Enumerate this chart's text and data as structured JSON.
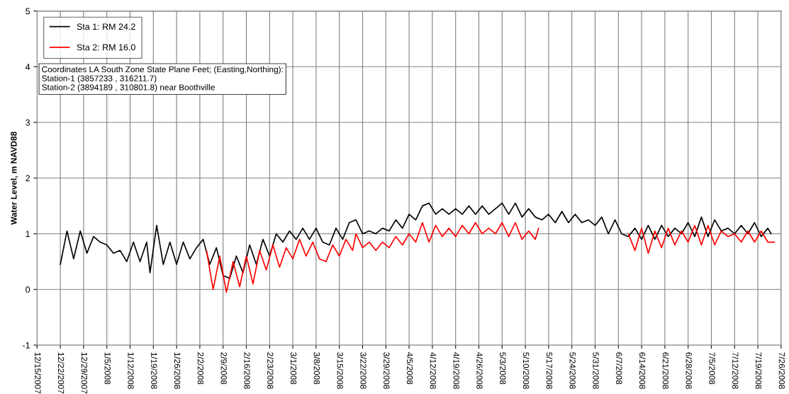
{
  "chart_data": {
    "type": "line",
    "ylabel": "Water Level, m NAVD88",
    "xlim": [
      "2007-12-15",
      "2008-07-26"
    ],
    "ylim": [
      -1,
      5
    ],
    "yticks": [
      -1,
      0,
      1,
      2,
      3,
      4,
      5
    ],
    "xticks": [
      {
        "value": "2007-12-15",
        "label": "12/15/2007"
      },
      {
        "value": "2007-12-22",
        "label": "12/22/2007"
      },
      {
        "value": "2007-12-29",
        "label": "12/29/2007"
      },
      {
        "value": "2008-01-05",
        "label": "1/5/2008"
      },
      {
        "value": "2008-01-12",
        "label": "1/12/2008"
      },
      {
        "value": "2008-01-19",
        "label": "1/19/2008"
      },
      {
        "value": "2008-01-26",
        "label": "1/26/2008"
      },
      {
        "value": "2008-02-02",
        "label": "2/2/2008"
      },
      {
        "value": "2008-02-09",
        "label": "2/9/2008"
      },
      {
        "value": "2008-02-16",
        "label": "2/16/2008"
      },
      {
        "value": "2008-02-23",
        "label": "2/23/2008"
      },
      {
        "value": "2008-03-01",
        "label": "3/1/2008"
      },
      {
        "value": "2008-03-08",
        "label": "3/8/2008"
      },
      {
        "value": "2008-03-15",
        "label": "3/15/2008"
      },
      {
        "value": "2008-03-22",
        "label": "3/22/2008"
      },
      {
        "value": "2008-03-29",
        "label": "3/29/2008"
      },
      {
        "value": "2008-04-05",
        "label": "4/5/2008"
      },
      {
        "value": "2008-04-12",
        "label": "4/12/2008"
      },
      {
        "value": "2008-04-19",
        "label": "4/19/2008"
      },
      {
        "value": "2008-04-26",
        "label": "4/26/2008"
      },
      {
        "value": "2008-05-03",
        "label": "5/3/2008"
      },
      {
        "value": "2008-05-10",
        "label": "5/10/2008"
      },
      {
        "value": "2008-05-17",
        "label": "5/17/2008"
      },
      {
        "value": "2008-05-24",
        "label": "5/24/2008"
      },
      {
        "value": "2008-05-31",
        "label": "5/31/2008"
      },
      {
        "value": "2008-06-07",
        "label": "6/7/2008"
      },
      {
        "value": "2008-06-14",
        "label": "6/14/2008"
      },
      {
        "value": "2008-06-21",
        "label": "6/21/2008"
      },
      {
        "value": "2008-06-28",
        "label": "6/28/2008"
      },
      {
        "value": "2008-07-05",
        "label": "7/5/2008"
      },
      {
        "value": "2008-07-12",
        "label": "7/12/2008"
      },
      {
        "value": "2008-07-19",
        "label": "7/19/2008"
      },
      {
        "value": "2008-07-26",
        "label": "7/26/2008"
      }
    ],
    "grid": true,
    "legend": "top left",
    "line_style": "solid",
    "annotations": [
      "Coordinates LA South Zone State Plane Feet; (Easting,Northing):\nStation-1 (3857233 , 316211.7)\nStation-2 (3894189 , 310801.8) near Boothville"
    ],
    "series": [
      {
        "name": "Sta 1: RM 24.2",
        "color": "#000000",
        "x": [
          "2007-12-22",
          "2007-12-24",
          "2007-12-26",
          "2007-12-28",
          "2007-12-30",
          "2008-01-01",
          "2008-01-03",
          "2008-01-05",
          "2008-01-07",
          "2008-01-09",
          "2008-01-11",
          "2008-01-13",
          "2008-01-15",
          "2008-01-17",
          "2008-01-18",
          "2008-01-20",
          "2008-01-22",
          "2008-01-24",
          "2008-01-26",
          "2008-01-28",
          "2008-01-30",
          "2008-02-01",
          "2008-02-03",
          "2008-02-05",
          "2008-02-07",
          "2008-02-09",
          "2008-02-11",
          "2008-02-13",
          "2008-02-15",
          "2008-02-17",
          "2008-02-19",
          "2008-02-21",
          "2008-02-23",
          "2008-02-25",
          "2008-02-27",
          "2008-02-29",
          "2008-03-02",
          "2008-03-04",
          "2008-03-06",
          "2008-03-08",
          "2008-03-10",
          "2008-03-12",
          "2008-03-14",
          "2008-03-16",
          "2008-03-18",
          "2008-03-20",
          "2008-03-22",
          "2008-03-24",
          "2008-03-26",
          "2008-03-28",
          "2008-03-30",
          "2008-04-01",
          "2008-04-03",
          "2008-04-05",
          "2008-04-07",
          "2008-04-09",
          "2008-04-11",
          "2008-04-13",
          "2008-04-15",
          "2008-04-17",
          "2008-04-19",
          "2008-04-21",
          "2008-04-23",
          "2008-04-25",
          "2008-04-27",
          "2008-04-29",
          "2008-05-01",
          "2008-05-03",
          "2008-05-05",
          "2008-05-07",
          "2008-05-09",
          "2008-05-11",
          "2008-05-13",
          "2008-05-15",
          "2008-05-17",
          "2008-05-19",
          "2008-05-21",
          "2008-05-23",
          "2008-05-25",
          "2008-05-27",
          "2008-05-29",
          "2008-05-31",
          "2008-06-02",
          "2008-06-04",
          "2008-06-06",
          "2008-06-08",
          "2008-06-10",
          "2008-06-12",
          "2008-06-14",
          "2008-06-16",
          "2008-06-18",
          "2008-06-20",
          "2008-06-22",
          "2008-06-24",
          "2008-06-26",
          "2008-06-28",
          "2008-06-30",
          "2008-07-02",
          "2008-07-04",
          "2008-07-06",
          "2008-07-08",
          "2008-07-10",
          "2008-07-12",
          "2008-07-14",
          "2008-07-16",
          "2008-07-18",
          "2008-07-20",
          "2008-07-22",
          "2008-07-23"
        ],
        "values": [
          0.45,
          1.05,
          0.55,
          1.05,
          0.65,
          0.95,
          0.85,
          0.8,
          0.65,
          0.7,
          0.5,
          0.85,
          0.5,
          0.85,
          0.3,
          1.15,
          0.45,
          0.85,
          0.45,
          0.85,
          0.55,
          0.75,
          0.9,
          0.45,
          0.75,
          0.25,
          0.2,
          0.6,
          0.3,
          0.8,
          0.45,
          0.9,
          0.6,
          1.0,
          0.85,
          1.05,
          0.9,
          1.1,
          0.9,
          1.1,
          0.85,
          0.8,
          1.1,
          0.9,
          1.2,
          1.25,
          1.0,
          1.05,
          1.0,
          1.1,
          1.05,
          1.25,
          1.1,
          1.35,
          1.25,
          1.5,
          1.55,
          1.35,
          1.45,
          1.35,
          1.45,
          1.35,
          1.5,
          1.35,
          1.5,
          1.35,
          1.45,
          1.55,
          1.35,
          1.55,
          1.3,
          1.45,
          1.3,
          1.25,
          1.35,
          1.2,
          1.4,
          1.2,
          1.35,
          1.2,
          1.25,
          1.15,
          1.3,
          1.0,
          1.25,
          1.0,
          0.95,
          1.1,
          0.9,
          1.15,
          0.9,
          1.15,
          0.95,
          1.1,
          1.0,
          1.2,
          0.95,
          1.3,
          0.95,
          1.25,
          1.05,
          1.1,
          1.0,
          1.15,
          1.0,
          1.2,
          0.95,
          1.1,
          1.0
        ]
      },
      {
        "name": "Sta 2: RM 16.0",
        "color": "#ff0000",
        "x": [
          "2008-02-04",
          "2008-02-06",
          "2008-02-08",
          "2008-02-10",
          "2008-02-12",
          "2008-02-14",
          "2008-02-16",
          "2008-02-18",
          "2008-02-20",
          "2008-02-22",
          "2008-02-24",
          "2008-02-26",
          "2008-02-28",
          "2008-03-01",
          "2008-03-03",
          "2008-03-05",
          "2008-03-07",
          "2008-03-09",
          "2008-03-11",
          "2008-03-13",
          "2008-03-15",
          "2008-03-17",
          "2008-03-19",
          "2008-03-20",
          "2008-03-22",
          "2008-03-24",
          "2008-03-26",
          "2008-03-28",
          "2008-03-30",
          "2008-04-01",
          "2008-04-03",
          "2008-04-05",
          "2008-04-07",
          "2008-04-09",
          "2008-04-11",
          "2008-04-13",
          "2008-04-15",
          "2008-04-17",
          "2008-04-19",
          "2008-04-21",
          "2008-04-23",
          "2008-04-25",
          "2008-04-27",
          "2008-04-29",
          "2008-05-01",
          "2008-05-03",
          "2008-05-05",
          "2008-05-07",
          "2008-05-09",
          "2008-05-11",
          "2008-05-13",
          "2008-05-14",
          "2008-05-15",
          "2008-06-10",
          "2008-06-12",
          "2008-06-14",
          "2008-06-16",
          "2008-06-18",
          "2008-06-20",
          "2008-06-22",
          "2008-06-24",
          "2008-06-26",
          "2008-06-28",
          "2008-06-30",
          "2008-07-02",
          "2008-07-04",
          "2008-07-06",
          "2008-07-08",
          "2008-07-10",
          "2008-07-12",
          "2008-07-14",
          "2008-07-16",
          "2008-07-18",
          "2008-07-20",
          "2008-07-22",
          "2008-07-24"
        ],
        "values": [
          0.7,
          0.0,
          0.6,
          -0.05,
          0.5,
          0.05,
          0.6,
          0.1,
          0.7,
          0.35,
          0.8,
          0.4,
          0.75,
          0.55,
          0.9,
          0.6,
          0.85,
          0.55,
          0.5,
          0.8,
          0.6,
          0.9,
          0.7,
          1.0,
          0.75,
          0.85,
          0.7,
          0.85,
          0.75,
          0.95,
          0.8,
          1.0,
          0.85,
          1.2,
          0.85,
          1.15,
          0.95,
          1.1,
          0.95,
          1.15,
          1.0,
          1.2,
          1.0,
          1.1,
          1.0,
          1.2,
          0.95,
          1.2,
          0.9,
          1.05,
          0.9,
          1.1,
          null,
          1.0,
          0.7,
          1.1,
          0.65,
          1.05,
          0.75,
          1.1,
          0.8,
          1.05,
          0.85,
          1.15,
          0.8,
          1.15,
          0.8,
          1.05,
          0.95,
          1.0,
          0.85,
          1.05,
          0.85,
          1.05,
          0.85,
          0.85
        ]
      }
    ]
  }
}
